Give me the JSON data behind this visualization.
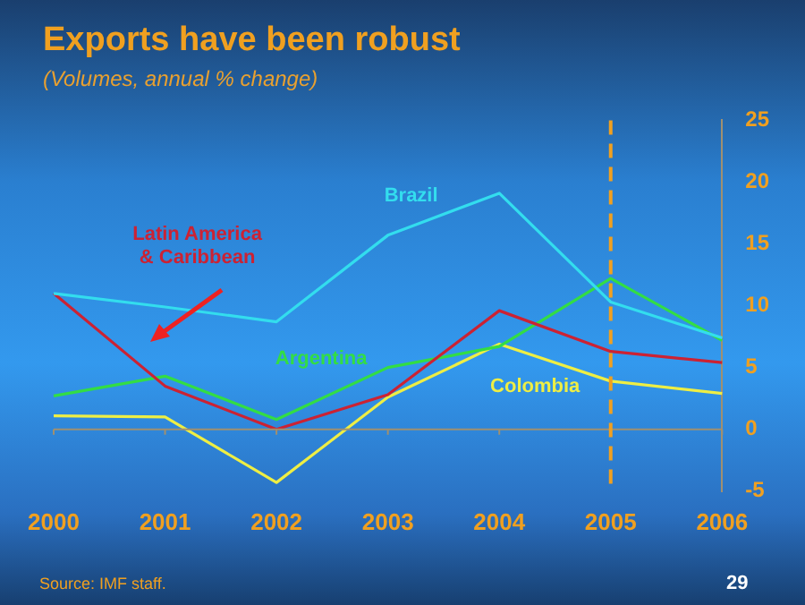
{
  "chart_data": {
    "type": "line",
    "title": "Exports have been robust",
    "subtitle": "(Volumes, annual % change)",
    "categories": [
      "2000",
      "2001",
      "2002",
      "2003",
      "2004",
      "2005",
      "2006"
    ],
    "series": [
      {
        "name": "Brazil",
        "color": "#33ddee",
        "values": [
          11.0,
          9.9,
          8.7,
          15.7,
          19.1,
          10.3,
          7.4
        ]
      },
      {
        "name": "Latin America & Caribbean",
        "color": "#cc2233",
        "values": [
          11.0,
          3.5,
          0,
          2.8,
          9.6,
          6.3,
          5.4
        ]
      },
      {
        "name": "Argentina",
        "color": "#33dd44",
        "values": [
          2.7,
          4.3,
          0.8,
          5.0,
          6.7,
          12.2,
          7.2
        ]
      },
      {
        "name": "Colombia",
        "color": "#eeee44",
        "values": [
          1.1,
          1.0,
          -4.3,
          2.6,
          6.9,
          3.9,
          2.9
        ]
      }
    ],
    "ylim": [
      -5,
      25
    ],
    "yticks": [
      -5,
      0,
      5,
      10,
      15,
      20,
      25
    ],
    "ref_lines": [
      {
        "axis": "y",
        "value": 0,
        "color": "#a09070",
        "line_style": "solid"
      },
      {
        "axis": "x",
        "value": "2005",
        "color": "#f0a020",
        "line_style": "dashed"
      }
    ],
    "annotations": [
      "Source: IMF staff.",
      "29"
    ],
    "grid": false,
    "legend": false,
    "marker": "none",
    "line_style": "solid"
  }
}
